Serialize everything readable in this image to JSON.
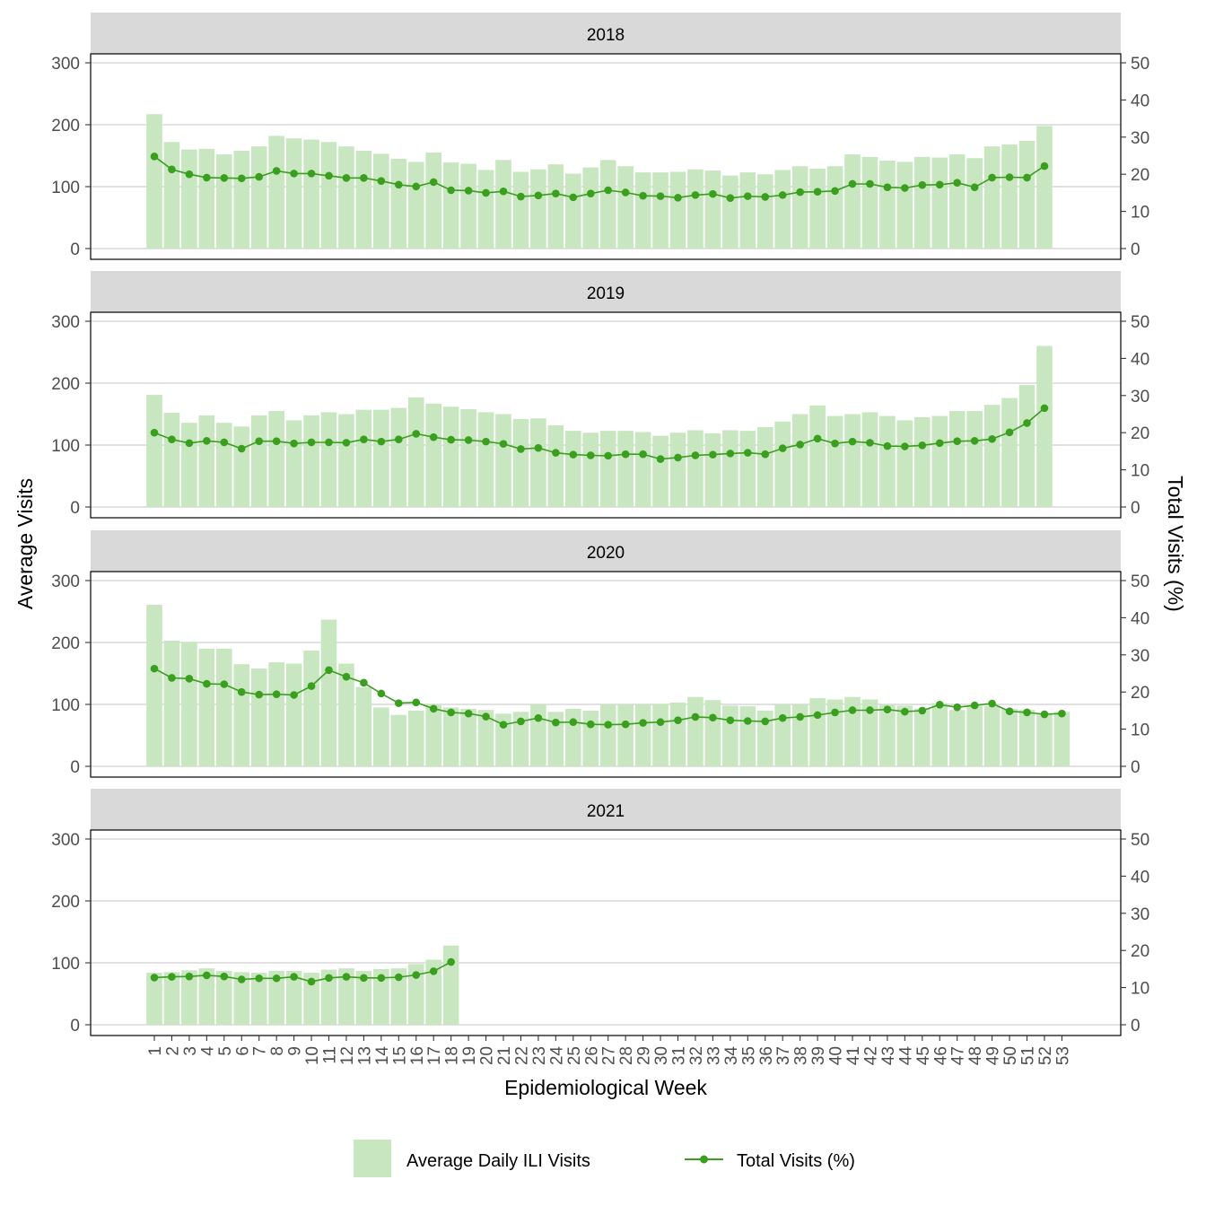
{
  "chart_data": {
    "type": "bar",
    "facets": [
      "2018",
      "2019",
      "2020",
      "2021"
    ],
    "x": [
      1,
      2,
      3,
      4,
      5,
      6,
      7,
      8,
      9,
      10,
      11,
      12,
      13,
      14,
      15,
      16,
      17,
      18,
      19,
      20,
      21,
      22,
      23,
      24,
      25,
      26,
      27,
      28,
      29,
      30,
      31,
      32,
      33,
      34,
      35,
      36,
      37,
      38,
      39,
      40,
      41,
      42,
      43,
      44,
      45,
      46,
      47,
      48,
      49,
      50,
      51,
      52,
      53
    ],
    "x_tick_labels": [
      "1",
      "2",
      "3",
      "4",
      "5",
      "6",
      "7",
      "8",
      "9",
      "10",
      "11",
      "12",
      "13",
      "14",
      "15",
      "16",
      "17",
      "18",
      "19",
      "20",
      "21",
      "22",
      "23",
      "24",
      "25",
      "26",
      "27",
      "28",
      "29",
      "30",
      "31",
      "32",
      "33",
      "34",
      "35",
      "36",
      "37",
      "38",
      "39",
      "40",
      "41",
      "42",
      "43",
      "44",
      "45",
      "46",
      "47",
      "48",
      "49",
      "50",
      "51",
      "52",
      "53"
    ],
    "xlabel": "Epidemiological Week",
    "ylabel": "Average Visits",
    "y2label": "Total Visits (%)",
    "ylim": [
      0,
      310
    ],
    "y2lim": [
      0,
      51.67
    ],
    "yticks": [
      0,
      100,
      200,
      300
    ],
    "y2ticks": [
      0,
      10,
      20,
      30,
      40,
      50
    ],
    "y_tick_labels": [
      "0",
      "100",
      "200",
      "300"
    ],
    "y2_tick_labels": [
      "0",
      "10",
      "20",
      "30",
      "40",
      "50"
    ],
    "grid": true,
    "legend_position": "bottom",
    "series": [
      {
        "name": "Average Daily ILI Visits",
        "kind": "bar",
        "color": "#c8e6c0",
        "values": {
          "2018": [
            217,
            172,
            160,
            161,
            152,
            158,
            165,
            182,
            178,
            176,
            172,
            165,
            158,
            153,
            145,
            140,
            155,
            139,
            137,
            127,
            143,
            124,
            128,
            136,
            121,
            131,
            143,
            133,
            123,
            123,
            124,
            128,
            126,
            118,
            123,
            120,
            127,
            133,
            129,
            133,
            152,
            148,
            142,
            140,
            148,
            147,
            152,
            146,
            165,
            168,
            174,
            198
          ],
          "2019": [
            181,
            152,
            136,
            148,
            136,
            130,
            148,
            155,
            140,
            148,
            153,
            150,
            157,
            157,
            160,
            177,
            167,
            162,
            158,
            153,
            150,
            142,
            143,
            132,
            123,
            120,
            123,
            123,
            121,
            115,
            120,
            124,
            119,
            124,
            123,
            129,
            138,
            150,
            164,
            147,
            150,
            153,
            147,
            140,
            145,
            147,
            155,
            155,
            165,
            176,
            197,
            260
          ],
          "2020": [
            261,
            203,
            201,
            190,
            190,
            165,
            158,
            168,
            166,
            187,
            237,
            166,
            128,
            95,
            83,
            90,
            100,
            95,
            93,
            91,
            85,
            88,
            100,
            88,
            93,
            90,
            100,
            100,
            100,
            101,
            103,
            112,
            107,
            98,
            97,
            90,
            100,
            100,
            110,
            108,
            112,
            108,
            100,
            98,
            93,
            102,
            91,
            98,
            97,
            93,
            91,
            86,
            88
          ],
          "2021": [
            84,
            85,
            88,
            91,
            87,
            85,
            84,
            87,
            87,
            84,
            89,
            91,
            87,
            90,
            91,
            98,
            105,
            128
          ]
        }
      },
      {
        "name": "Total Visits (%)",
        "kind": "line",
        "color": "#3a9e1f",
        "values": {
          "2018": [
            24.8,
            21.3,
            20.0,
            19.1,
            19.0,
            18.9,
            19.3,
            20.9,
            20.2,
            20.2,
            19.6,
            19.0,
            19.0,
            18.2,
            17.2,
            16.7,
            17.9,
            15.7,
            15.6,
            15.0,
            15.4,
            14.0,
            14.3,
            14.8,
            13.8,
            14.8,
            15.7,
            15.1,
            14.2,
            14.1,
            13.7,
            14.4,
            14.7,
            13.6,
            14.1,
            13.9,
            14.4,
            15.2,
            15.3,
            15.5,
            17.4,
            17.4,
            16.5,
            16.3,
            17.1,
            17.2,
            17.7,
            16.5,
            19.1,
            19.2,
            19.1,
            22.2
          ],
          "2019": [
            20.0,
            18.2,
            17.2,
            17.8,
            17.4,
            15.7,
            17.7,
            17.7,
            17.1,
            17.4,
            17.4,
            17.3,
            18.2,
            17.6,
            18.2,
            19.7,
            18.8,
            18.1,
            18.0,
            17.6,
            17.0,
            15.6,
            15.9,
            14.6,
            14.1,
            13.9,
            13.8,
            14.2,
            14.2,
            12.9,
            13.3,
            13.9,
            14.1,
            14.4,
            14.6,
            14.2,
            15.8,
            16.8,
            18.4,
            17.1,
            17.6,
            17.3,
            16.4,
            16.3,
            16.6,
            17.2,
            17.7,
            17.8,
            18.3,
            20.1,
            22.6,
            26.6
          ],
          "2020": [
            26.3,
            23.8,
            23.6,
            22.2,
            22.1,
            20.0,
            19.3,
            19.4,
            19.2,
            21.6,
            25.9,
            24.1,
            22.5,
            19.6,
            17.0,
            17.2,
            15.5,
            14.5,
            14.2,
            13.4,
            11.2,
            12.1,
            13.0,
            11.8,
            11.9,
            11.3,
            11.2,
            11.3,
            11.7,
            11.9,
            12.4,
            13.3,
            13.1,
            12.4,
            12.2,
            12.1,
            13.0,
            13.3,
            13.8,
            14.5,
            15.1,
            15.1,
            15.3,
            14.7,
            15.0,
            16.6,
            15.9,
            16.4,
            16.9,
            14.8,
            14.5,
            14.0,
            14.2
          ],
          "2021": [
            12.7,
            12.9,
            13.0,
            13.3,
            13.0,
            12.2,
            12.5,
            12.5,
            12.9,
            11.6,
            12.6,
            12.9,
            12.6,
            12.6,
            12.8,
            13.4,
            14.4,
            16.9
          ]
        }
      }
    ]
  }
}
